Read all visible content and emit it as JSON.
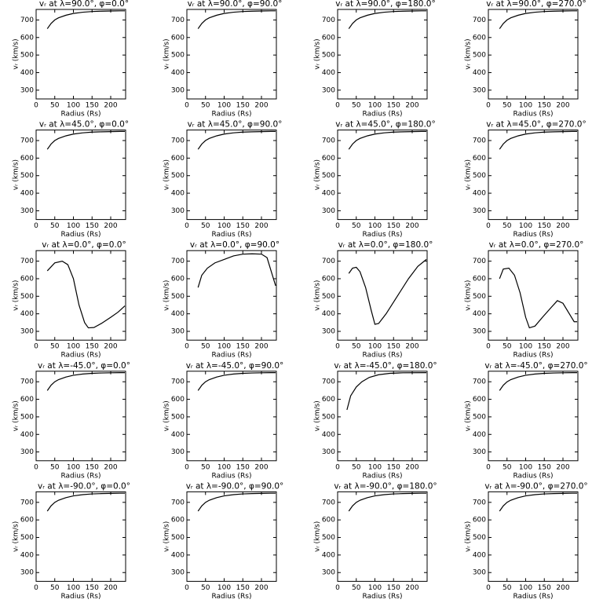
{
  "chart_data": [
    {
      "type": "line",
      "title": "vᵣ at λ=90.0°, φ=0.0°",
      "xlabel": "Radius (Rs)",
      "ylabel": "vᵣ (km/s)",
      "color": "#000000",
      "xlim": [
        0,
        240
      ],
      "ylim": [
        250,
        760
      ],
      "xticks": [
        0,
        50,
        100,
        150,
        200
      ],
      "yticks": [
        300,
        400,
        500,
        600,
        700
      ],
      "x": [
        30,
        40,
        50,
        60,
        80,
        100,
        125,
        150,
        175,
        200,
        225,
        238
      ],
      "values": [
        650,
        680,
        700,
        712,
        727,
        737,
        744,
        748,
        750,
        751,
        752,
        752
      ]
    },
    {
      "type": "line",
      "title": "vᵣ at λ=90.0°, φ=90.0°",
      "xlabel": "Radius (Rs)",
      "ylabel": "vᵣ (km/s)",
      "color": "#000000",
      "xlim": [
        0,
        240
      ],
      "ylim": [
        250,
        760
      ],
      "xticks": [
        0,
        50,
        100,
        150,
        200
      ],
      "yticks": [
        300,
        400,
        500,
        600,
        700
      ],
      "x": [
        30,
        40,
        50,
        60,
        80,
        100,
        125,
        150,
        175,
        200,
        225,
        238
      ],
      "values": [
        650,
        680,
        700,
        712,
        727,
        737,
        744,
        748,
        750,
        751,
        752,
        752
      ]
    },
    {
      "type": "line",
      "title": "vᵣ at λ=90.0°, φ=180.0°",
      "xlabel": "Radius (Rs)",
      "ylabel": "vᵣ (km/s)",
      "color": "#000000",
      "xlim": [
        0,
        240
      ],
      "ylim": [
        250,
        760
      ],
      "xticks": [
        0,
        50,
        100,
        150,
        200
      ],
      "yticks": [
        300,
        400,
        500,
        600,
        700
      ],
      "x": [
        30,
        40,
        50,
        60,
        80,
        100,
        125,
        150,
        175,
        200,
        225,
        238
      ],
      "values": [
        650,
        680,
        700,
        712,
        727,
        737,
        744,
        748,
        750,
        751,
        752,
        752
      ]
    },
    {
      "type": "line",
      "title": "vᵣ at λ=90.0°, φ=270.0°",
      "xlabel": "Radius (Rs)",
      "ylabel": "vᵣ (km/s)",
      "color": "#000000",
      "xlim": [
        0,
        240
      ],
      "ylim": [
        250,
        760
      ],
      "xticks": [
        0,
        50,
        100,
        150,
        200
      ],
      "yticks": [
        300,
        400,
        500,
        600,
        700
      ],
      "x": [
        30,
        40,
        50,
        60,
        80,
        100,
        125,
        150,
        175,
        200,
        225,
        238
      ],
      "values": [
        650,
        680,
        700,
        712,
        727,
        737,
        744,
        748,
        750,
        751,
        752,
        752
      ]
    },
    {
      "type": "line",
      "title": "vᵣ at λ=45.0°, φ=0.0°",
      "xlabel": "Radius (Rs)",
      "ylabel": "vᵣ (km/s)",
      "color": "#000000",
      "xlim": [
        0,
        240
      ],
      "ylim": [
        250,
        760
      ],
      "xticks": [
        0,
        50,
        100,
        150,
        200
      ],
      "yticks": [
        300,
        400,
        500,
        600,
        700
      ],
      "x": [
        30,
        40,
        50,
        60,
        80,
        100,
        125,
        150,
        175,
        200,
        225,
        238
      ],
      "values": [
        650,
        680,
        700,
        712,
        727,
        737,
        744,
        748,
        750,
        751,
        752,
        752
      ]
    },
    {
      "type": "line",
      "title": "vᵣ at λ=45.0°, φ=90.0°",
      "xlabel": "Radius (Rs)",
      "ylabel": "vᵣ (km/s)",
      "color": "#000000",
      "xlim": [
        0,
        240
      ],
      "ylim": [
        250,
        760
      ],
      "xticks": [
        0,
        50,
        100,
        150,
        200
      ],
      "yticks": [
        300,
        400,
        500,
        600,
        700
      ],
      "x": [
        30,
        40,
        50,
        60,
        80,
        100,
        125,
        150,
        175,
        200,
        225,
        238
      ],
      "values": [
        650,
        680,
        700,
        712,
        727,
        737,
        744,
        748,
        750,
        751,
        752,
        752
      ]
    },
    {
      "type": "line",
      "title": "vᵣ at λ=45.0°, φ=180.0°",
      "xlabel": "Radius (Rs)",
      "ylabel": "vᵣ (km/s)",
      "color": "#000000",
      "xlim": [
        0,
        240
      ],
      "ylim": [
        250,
        760
      ],
      "xticks": [
        0,
        50,
        100,
        150,
        200
      ],
      "yticks": [
        300,
        400,
        500,
        600,
        700
      ],
      "x": [
        30,
        40,
        50,
        60,
        80,
        100,
        125,
        150,
        175,
        200,
        225,
        238
      ],
      "values": [
        650,
        680,
        700,
        712,
        727,
        737,
        744,
        748,
        750,
        751,
        752,
        752
      ]
    },
    {
      "type": "line",
      "title": "vᵣ at λ=45.0°, φ=270.0°",
      "xlabel": "Radius (Rs)",
      "ylabel": "vᵣ (km/s)",
      "color": "#000000",
      "xlim": [
        0,
        240
      ],
      "ylim": [
        250,
        760
      ],
      "xticks": [
        0,
        50,
        100,
        150,
        200
      ],
      "yticks": [
        300,
        400,
        500,
        600,
        700
      ],
      "x": [
        30,
        40,
        50,
        60,
        80,
        100,
        125,
        150,
        175,
        200,
        225,
        238
      ],
      "values": [
        650,
        680,
        700,
        712,
        727,
        737,
        744,
        748,
        750,
        751,
        752,
        752
      ]
    },
    {
      "type": "line",
      "title": "vᵣ at λ=0.0°, φ=0.0°",
      "xlabel": "Radius (Rs)",
      "ylabel": "vᵣ (km/s)",
      "color": "#000000",
      "xlim": [
        0,
        240
      ],
      "ylim": [
        250,
        760
      ],
      "xticks": [
        0,
        50,
        100,
        150,
        200
      ],
      "yticks": [
        300,
        400,
        500,
        600,
        700
      ],
      "x": [
        30,
        50,
        70,
        85,
        100,
        115,
        130,
        140,
        155,
        175,
        200,
        220,
        238
      ],
      "values": [
        645,
        690,
        700,
        680,
        600,
        450,
        350,
        320,
        322,
        345,
        380,
        410,
        445
      ]
    },
    {
      "type": "line",
      "title": "vᵣ at λ=0.0°, φ=90.0°",
      "xlabel": "Radius (Rs)",
      "ylabel": "vᵣ (km/s)",
      "color": "#000000",
      "xlim": [
        0,
        240
      ],
      "ylim": [
        250,
        760
      ],
      "xticks": [
        0,
        50,
        100,
        150,
        200
      ],
      "yticks": [
        300,
        400,
        500,
        600,
        700
      ],
      "x": [
        30,
        40,
        55,
        75,
        100,
        125,
        150,
        175,
        200,
        215,
        225,
        238
      ],
      "values": [
        550,
        620,
        660,
        690,
        710,
        730,
        740,
        742,
        740,
        720,
        650,
        560
      ]
    },
    {
      "type": "line",
      "title": "vᵣ at λ=0.0°, φ=180.0°",
      "xlabel": "Radius (Rs)",
      "ylabel": "vᵣ (km/s)",
      "color": "#000000",
      "xlim": [
        0,
        240
      ],
      "ylim": [
        250,
        760
      ],
      "xticks": [
        0,
        50,
        100,
        150,
        200
      ],
      "yticks": [
        300,
        400,
        500,
        600,
        700
      ],
      "x": [
        30,
        40,
        50,
        60,
        75,
        90,
        100,
        110,
        130,
        160,
        190,
        215,
        238
      ],
      "values": [
        630,
        660,
        665,
        640,
        550,
        420,
        340,
        345,
        400,
        500,
        600,
        670,
        710
      ]
    },
    {
      "type": "line",
      "title": "vᵣ at λ=0.0°, φ=270.0°",
      "xlabel": "Radius (Rs)",
      "ylabel": "vᵣ (km/s)",
      "color": "#000000",
      "xlim": [
        0,
        240
      ],
      "ylim": [
        250,
        760
      ],
      "xticks": [
        0,
        50,
        100,
        150,
        200
      ],
      "yticks": [
        300,
        400,
        500,
        600,
        700
      ],
      "x": [
        30,
        40,
        55,
        70,
        85,
        100,
        110,
        125,
        145,
        170,
        185,
        200,
        220,
        230,
        238
      ],
      "values": [
        600,
        655,
        660,
        620,
        520,
        380,
        320,
        330,
        380,
        440,
        475,
        460,
        390,
        355,
        355
      ]
    },
    {
      "type": "line",
      "title": "vᵣ at λ=-45.0°, φ=0.0°",
      "xlabel": "Radius (Rs)",
      "ylabel": "vᵣ (km/s)",
      "color": "#000000",
      "xlim": [
        0,
        240
      ],
      "ylim": [
        250,
        760
      ],
      "xticks": [
        0,
        50,
        100,
        150,
        200
      ],
      "yticks": [
        300,
        400,
        500,
        600,
        700
      ],
      "x": [
        30,
        40,
        50,
        60,
        80,
        100,
        125,
        150,
        175,
        200,
        225,
        238
      ],
      "values": [
        650,
        680,
        700,
        712,
        727,
        737,
        744,
        748,
        750,
        751,
        752,
        752
      ]
    },
    {
      "type": "line",
      "title": "vᵣ at λ=-45.0°, φ=90.0°",
      "xlabel": "Radius (Rs)",
      "ylabel": "vᵣ (km/s)",
      "color": "#000000",
      "xlim": [
        0,
        240
      ],
      "ylim": [
        250,
        760
      ],
      "xticks": [
        0,
        50,
        100,
        150,
        200
      ],
      "yticks": [
        300,
        400,
        500,
        600,
        700
      ],
      "x": [
        30,
        40,
        50,
        60,
        80,
        100,
        125,
        150,
        175,
        200,
        225,
        238
      ],
      "values": [
        650,
        680,
        700,
        712,
        727,
        737,
        744,
        748,
        750,
        751,
        752,
        752
      ]
    },
    {
      "type": "line",
      "title": "vᵣ at λ=-45.0°, φ=180.0°",
      "xlabel": "Radius (Rs)",
      "ylabel": "vᵣ (km/s)",
      "color": "#000000",
      "xlim": [
        0,
        240
      ],
      "ylim": [
        250,
        760
      ],
      "xticks": [
        0,
        50,
        100,
        150,
        200
      ],
      "yticks": [
        300,
        400,
        500,
        600,
        700
      ],
      "x": [
        25,
        35,
        50,
        65,
        85,
        110,
        140,
        175,
        238
      ],
      "values": [
        540,
        620,
        670,
        700,
        725,
        740,
        748,
        751,
        752
      ]
    },
    {
      "type": "line",
      "title": "vᵣ at λ=-45.0°, φ=270.0°",
      "xlabel": "Radius (Rs)",
      "ylabel": "vᵣ (km/s)",
      "color": "#000000",
      "xlim": [
        0,
        240
      ],
      "ylim": [
        250,
        760
      ],
      "xticks": [
        0,
        50,
        100,
        150,
        200
      ],
      "yticks": [
        300,
        400,
        500,
        600,
        700
      ],
      "x": [
        30,
        40,
        50,
        60,
        80,
        100,
        125,
        150,
        175,
        200,
        225,
        238
      ],
      "values": [
        650,
        680,
        700,
        712,
        727,
        737,
        744,
        748,
        750,
        751,
        752,
        752
      ]
    },
    {
      "type": "line",
      "title": "vᵣ at λ=-90.0°, φ=0.0°",
      "xlabel": "Radius (Rs)",
      "ylabel": "vᵣ (km/s)",
      "color": "#000000",
      "xlim": [
        0,
        240
      ],
      "ylim": [
        250,
        760
      ],
      "xticks": [
        0,
        50,
        100,
        150,
        200
      ],
      "yticks": [
        300,
        400,
        500,
        600,
        700
      ],
      "x": [
        30,
        40,
        50,
        60,
        80,
        100,
        125,
        150,
        175,
        200,
        225,
        238
      ],
      "values": [
        650,
        680,
        700,
        712,
        727,
        737,
        744,
        748,
        750,
        751,
        752,
        752
      ]
    },
    {
      "type": "line",
      "title": "vᵣ at λ=-90.0°, φ=90.0°",
      "xlabel": "Radius (Rs)",
      "ylabel": "vᵣ (km/s)",
      "color": "#000000",
      "xlim": [
        0,
        240
      ],
      "ylim": [
        250,
        760
      ],
      "xticks": [
        0,
        50,
        100,
        150,
        200
      ],
      "yticks": [
        300,
        400,
        500,
        600,
        700
      ],
      "x": [
        30,
        40,
        50,
        60,
        80,
        100,
        125,
        150,
        175,
        200,
        225,
        238
      ],
      "values": [
        650,
        680,
        700,
        712,
        727,
        737,
        744,
        748,
        750,
        751,
        752,
        752
      ]
    },
    {
      "type": "line",
      "title": "vᵣ at λ=-90.0°, φ=180.0°",
      "xlabel": "Radius (Rs)",
      "ylabel": "vᵣ (km/s)",
      "color": "#000000",
      "xlim": [
        0,
        240
      ],
      "ylim": [
        250,
        760
      ],
      "xticks": [
        0,
        50,
        100,
        150,
        200
      ],
      "yticks": [
        300,
        400,
        500,
        600,
        700
      ],
      "x": [
        30,
        40,
        50,
        60,
        80,
        100,
        125,
        150,
        175,
        200,
        225,
        238
      ],
      "values": [
        650,
        680,
        700,
        712,
        727,
        737,
        744,
        748,
        750,
        751,
        752,
        752
      ]
    },
    {
      "type": "line",
      "title": "vᵣ at λ=-90.0°, φ=270.0°",
      "xlabel": "Radius (Rs)",
      "ylabel": "vᵣ (km/s)",
      "color": "#000000",
      "xlim": [
        0,
        240
      ],
      "ylim": [
        250,
        760
      ],
      "xticks": [
        0,
        50,
        100,
        150,
        200
      ],
      "yticks": [
        300,
        400,
        500,
        600,
        700
      ],
      "x": [
        30,
        40,
        50,
        60,
        80,
        100,
        125,
        150,
        175,
        200,
        225,
        238
      ],
      "values": [
        650,
        680,
        700,
        712,
        727,
        737,
        744,
        748,
        750,
        751,
        752,
        752
      ]
    }
  ]
}
